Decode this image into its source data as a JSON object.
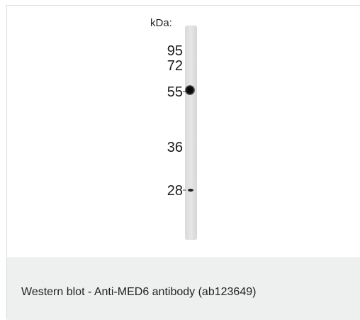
{
  "figure": {
    "unit_label": "kDa:",
    "markers": [
      "95",
      "72",
      "55",
      "36",
      "28"
    ],
    "caption": "Western blot - Anti-MED6 antibody (ab123649)"
  }
}
